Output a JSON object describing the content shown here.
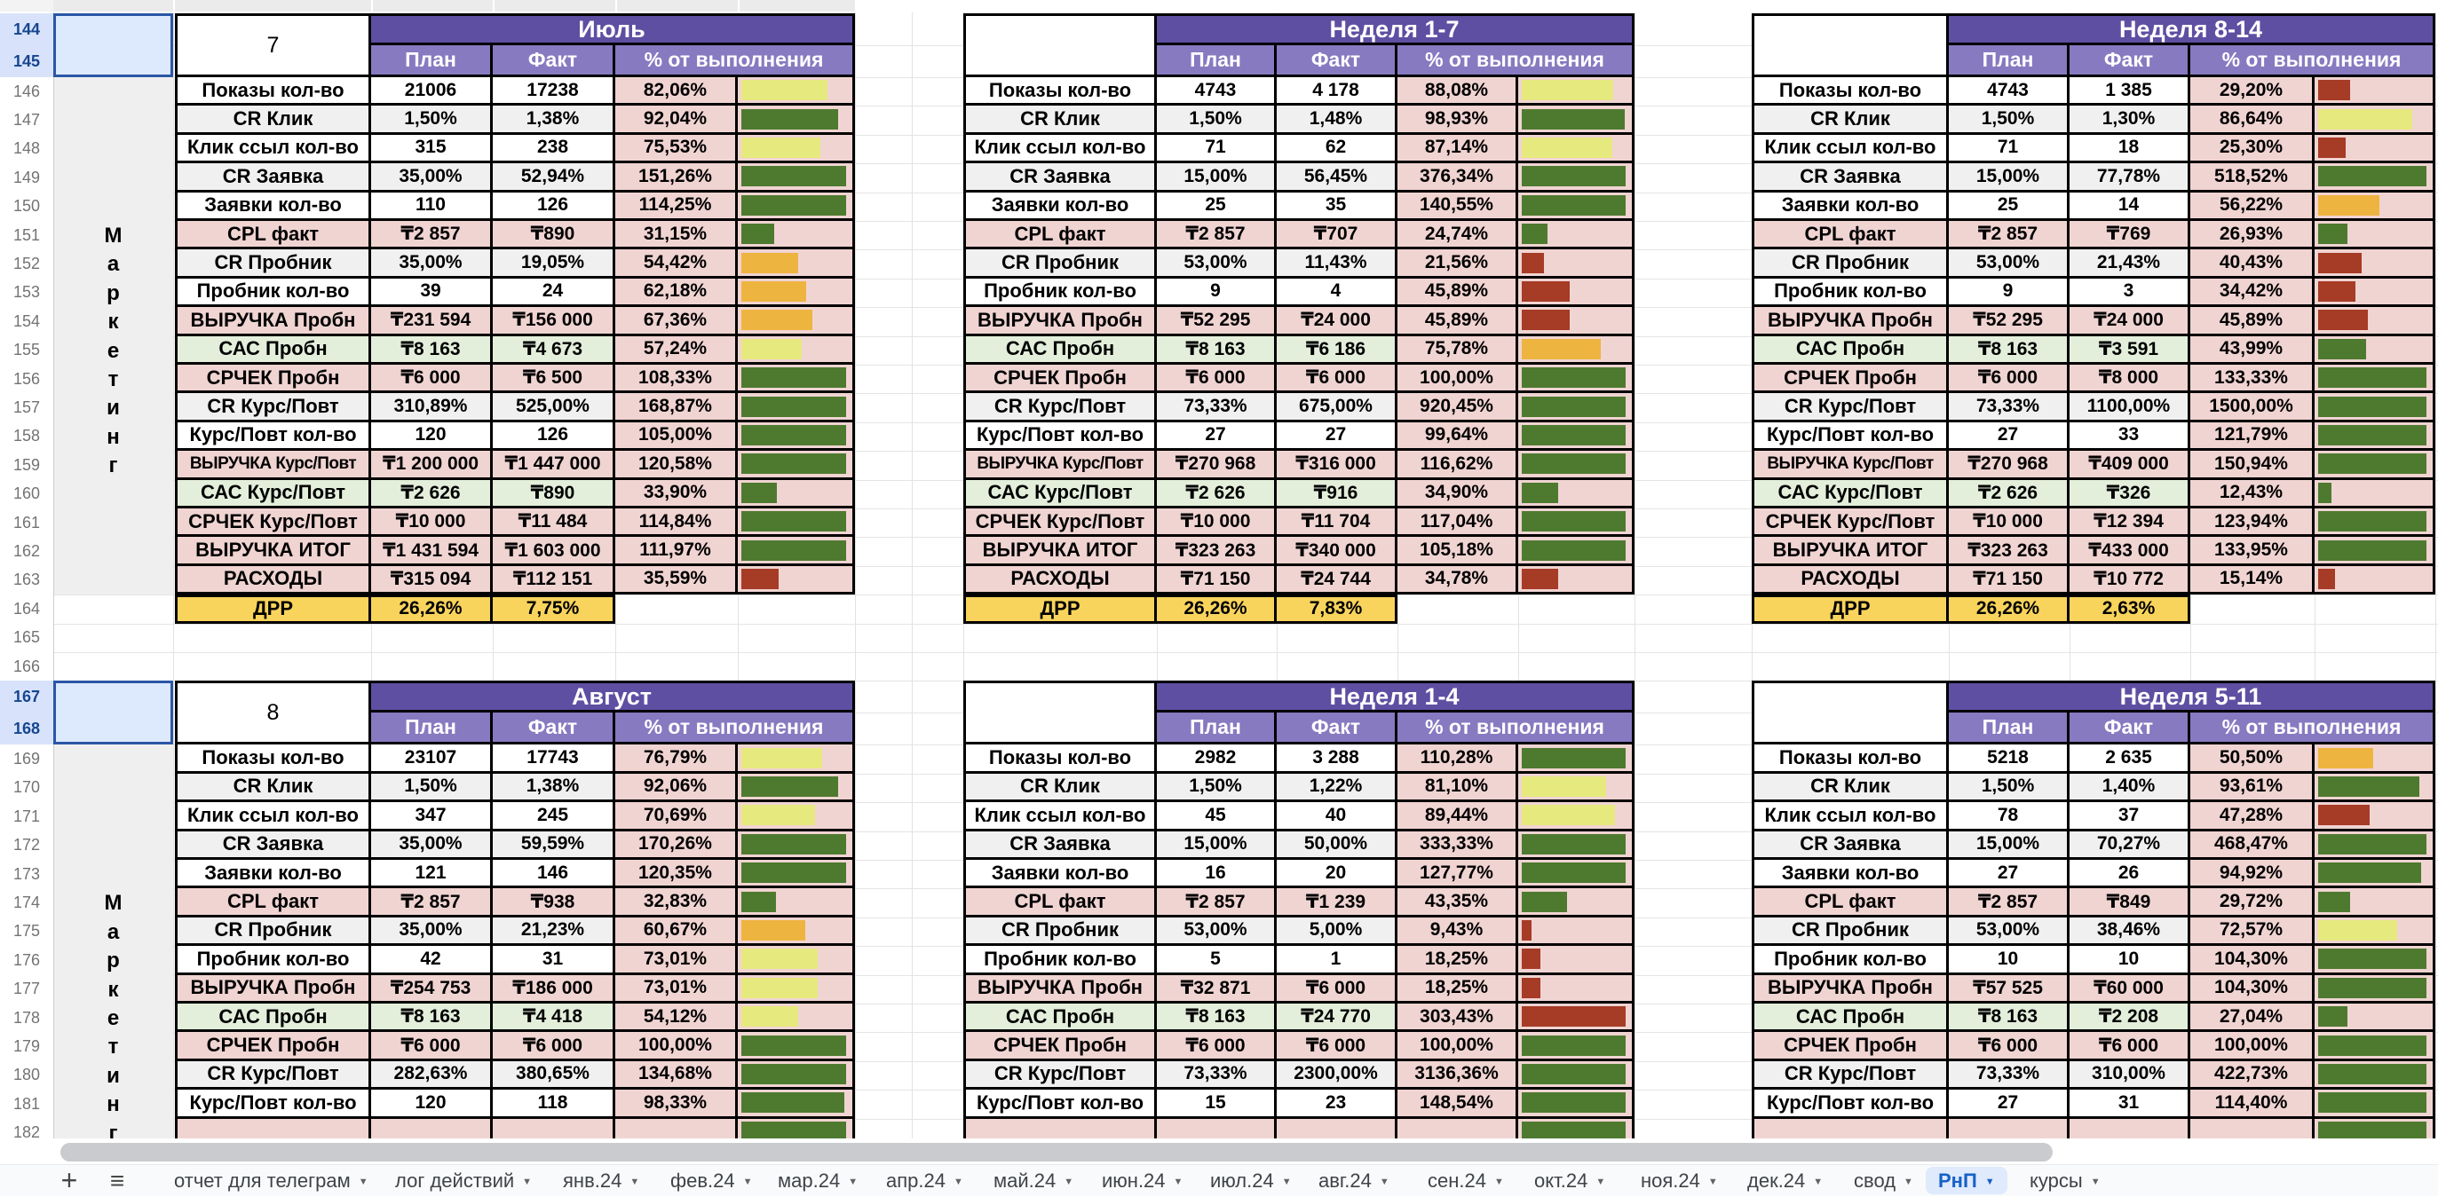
{
  "headers": {
    "plan": "План",
    "fact": "Факт",
    "pct": "% от выполнения"
  },
  "drr_label": "ДРР",
  "side_label": {
    "text": "Маркетинг",
    "letters": [
      "М",
      "а",
      "р",
      "к",
      "е",
      "т",
      "и",
      "н",
      "г"
    ]
  },
  "metrics": [
    "Показы кол-во",
    "CR Клик",
    "Клик ссыл кол-во",
    "CR Заявка",
    "Заявки кол-во",
    "CPL факт",
    "CR Пробник",
    "Пробник кол-во",
    "ВЫРУЧКА Пробн",
    "САС Пробн",
    "СРЧЕК Пробн",
    "CR Курс/Повт",
    "Курс/Повт кол-во",
    "ВЫРУЧКА Курс/Повт",
    "САС Курс/Повт",
    "СРЧЕК Курс/Повт",
    "ВЫРУЧКА ИТОГ",
    "РАСХОДЫ"
  ],
  "row_styles": [
    "white",
    "grey",
    "white",
    "grey",
    "white",
    "pink",
    "grey",
    "white",
    "pink",
    "green",
    "pink",
    "grey",
    "white",
    "pink",
    "green",
    "pink",
    "pink",
    "pink"
  ],
  "row_numbers": {
    "first": 144,
    "last": 182,
    "selected": [
      144,
      145,
      167,
      168
    ]
  },
  "tables": [
    {
      "id": "july",
      "title": "Июль",
      "index_label": "7",
      "band": "top",
      "col": 0,
      "rows": [
        {
          "plan": "21006",
          "fact": "17238",
          "pct": "82,06%",
          "pct_value": 82.06,
          "bar": "yellow"
        },
        {
          "plan": "1,50%",
          "fact": "1,38%",
          "pct": "92,04%",
          "pct_value": 92.04,
          "bar": "green"
        },
        {
          "plan": "315",
          "fact": "238",
          "pct": "75,53%",
          "pct_value": 75.53,
          "bar": "yellow"
        },
        {
          "plan": "35,00%",
          "fact": "52,94%",
          "pct": "151,26%",
          "pct_value": 151.26,
          "bar": "green"
        },
        {
          "plan": "110",
          "fact": "126",
          "pct": "114,25%",
          "pct_value": 114.25,
          "bar": "green"
        },
        {
          "plan": "₸2 857",
          "fact": "₸890",
          "pct": "31,15%",
          "pct_value": 31.15,
          "bar": "green"
        },
        {
          "plan": "35,00%",
          "fact": "19,05%",
          "pct": "54,42%",
          "pct_value": 54.42,
          "bar": "orange"
        },
        {
          "plan": "39",
          "fact": "24",
          "pct": "62,18%",
          "pct_value": 62.18,
          "bar": "orange"
        },
        {
          "plan": "₸231 594",
          "fact": "₸156 000",
          "pct": "67,36%",
          "pct_value": 67.36,
          "bar": "orange"
        },
        {
          "plan": "₸8 163",
          "fact": "₸4 673",
          "pct": "57,24%",
          "pct_value": 57.24,
          "bar": "yellow"
        },
        {
          "plan": "₸6 000",
          "fact": "₸6 500",
          "pct": "108,33%",
          "pct_value": 108.33,
          "bar": "green"
        },
        {
          "plan": "310,89%",
          "fact": "525,00%",
          "pct": "168,87%",
          "pct_value": 168.87,
          "bar": "green"
        },
        {
          "plan": "120",
          "fact": "126",
          "pct": "105,00%",
          "pct_value": 105.0,
          "bar": "green"
        },
        {
          "plan": "₸1 200 000",
          "fact": "₸1 447 000",
          "pct": "120,58%",
          "pct_value": 120.58,
          "bar": "green"
        },
        {
          "plan": "₸2 626",
          "fact": "₸890",
          "pct": "33,90%",
          "pct_value": 33.9,
          "bar": "green"
        },
        {
          "plan": "₸10 000",
          "fact": "₸11 484",
          "pct": "114,84%",
          "pct_value": 114.84,
          "bar": "green"
        },
        {
          "plan": "₸1 431 594",
          "fact": "₸1 603 000",
          "pct": "111,97%",
          "pct_value": 111.97,
          "bar": "green"
        },
        {
          "plan": "₸315 094",
          "fact": "₸112 151",
          "pct": "35,59%",
          "pct_value": 35.59,
          "bar": "red"
        }
      ],
      "drr": {
        "plan": "26,26%",
        "fact": "7,75%"
      }
    },
    {
      "id": "week-1-7",
      "title": "Неделя 1-7",
      "index_label": "",
      "band": "top",
      "col": 1,
      "rows": [
        {
          "plan": "4743",
          "fact": "4 178",
          "pct": "88,08%",
          "pct_value": 88.08,
          "bar": "yellow"
        },
        {
          "plan": "1,50%",
          "fact": "1,48%",
          "pct": "98,93%",
          "pct_value": 98.93,
          "bar": "green"
        },
        {
          "plan": "71",
          "fact": "62",
          "pct": "87,14%",
          "pct_value": 87.14,
          "bar": "yellow"
        },
        {
          "plan": "15,00%",
          "fact": "56,45%",
          "pct": "376,34%",
          "pct_value": 376.34,
          "bar": "green"
        },
        {
          "plan": "25",
          "fact": "35",
          "pct": "140,55%",
          "pct_value": 140.55,
          "bar": "green"
        },
        {
          "plan": "₸2 857",
          "fact": "₸707",
          "pct": "24,74%",
          "pct_value": 24.74,
          "bar": "green"
        },
        {
          "plan": "53,00%",
          "fact": "11,43%",
          "pct": "21,56%",
          "pct_value": 21.56,
          "bar": "red"
        },
        {
          "plan": "9",
          "fact": "4",
          "pct": "45,89%",
          "pct_value": 45.89,
          "bar": "red"
        },
        {
          "plan": "₸52 295",
          "fact": "₸24 000",
          "pct": "45,89%",
          "pct_value": 45.89,
          "bar": "red"
        },
        {
          "plan": "₸8 163",
          "fact": "₸6 186",
          "pct": "75,78%",
          "pct_value": 75.78,
          "bar": "orange"
        },
        {
          "plan": "₸6 000",
          "fact": "₸6 000",
          "pct": "100,00%",
          "pct_value": 100.0,
          "bar": "green"
        },
        {
          "plan": "73,33%",
          "fact": "675,00%",
          "pct": "920,45%",
          "pct_value": 920.45,
          "bar": "green"
        },
        {
          "plan": "27",
          "fact": "27",
          "pct": "99,64%",
          "pct_value": 99.64,
          "bar": "green"
        },
        {
          "plan": "₸270 968",
          "fact": "₸316 000",
          "pct": "116,62%",
          "pct_value": 116.62,
          "bar": "green"
        },
        {
          "plan": "₸2 626",
          "fact": "₸916",
          "pct": "34,90%",
          "pct_value": 34.9,
          "bar": "green"
        },
        {
          "plan": "₸10 000",
          "fact": "₸11 704",
          "pct": "117,04%",
          "pct_value": 117.04,
          "bar": "green"
        },
        {
          "plan": "₸323 263",
          "fact": "₸340 000",
          "pct": "105,18%",
          "pct_value": 105.18,
          "bar": "green"
        },
        {
          "plan": "₸71 150",
          "fact": "₸24 744",
          "pct": "34,78%",
          "pct_value": 34.78,
          "bar": "red"
        }
      ],
      "drr": {
        "plan": "26,26%",
        "fact": "7,83%"
      }
    },
    {
      "id": "week-8-14",
      "title": "Неделя 8-14",
      "index_label": "",
      "band": "top",
      "col": 2,
      "rows": [
        {
          "plan": "4743",
          "fact": "1 385",
          "pct": "29,20%",
          "pct_value": 29.2,
          "bar": "red"
        },
        {
          "plan": "1,50%",
          "fact": "1,30%",
          "pct": "86,64%",
          "pct_value": 86.64,
          "bar": "yellow"
        },
        {
          "plan": "71",
          "fact": "18",
          "pct": "25,30%",
          "pct_value": 25.3,
          "bar": "red"
        },
        {
          "plan": "15,00%",
          "fact": "77,78%",
          "pct": "518,52%",
          "pct_value": 518.52,
          "bar": "green"
        },
        {
          "plan": "25",
          "fact": "14",
          "pct": "56,22%",
          "pct_value": 56.22,
          "bar": "orange"
        },
        {
          "plan": "₸2 857",
          "fact": "₸769",
          "pct": "26,93%",
          "pct_value": 26.93,
          "bar": "green"
        },
        {
          "plan": "53,00%",
          "fact": "21,43%",
          "pct": "40,43%",
          "pct_value": 40.43,
          "bar": "red"
        },
        {
          "plan": "9",
          "fact": "3",
          "pct": "34,42%",
          "pct_value": 34.42,
          "bar": "red"
        },
        {
          "plan": "₸52 295",
          "fact": "₸24 000",
          "pct": "45,89%",
          "pct_value": 45.89,
          "bar": "red"
        },
        {
          "plan": "₸8 163",
          "fact": "₸3 591",
          "pct": "43,99%",
          "pct_value": 43.99,
          "bar": "green"
        },
        {
          "plan": "₸6 000",
          "fact": "₸8 000",
          "pct": "133,33%",
          "pct_value": 133.33,
          "bar": "green"
        },
        {
          "plan": "73,33%",
          "fact": "1100,00%",
          "pct": "1500,00%",
          "pct_value": 1500.0,
          "bar": "green"
        },
        {
          "plan": "27",
          "fact": "33",
          "pct": "121,79%",
          "pct_value": 121.79,
          "bar": "green"
        },
        {
          "plan": "₸270 968",
          "fact": "₸409 000",
          "pct": "150,94%",
          "pct_value": 150.94,
          "bar": "green"
        },
        {
          "plan": "₸2 626",
          "fact": "₸326",
          "pct": "12,43%",
          "pct_value": 12.43,
          "bar": "green"
        },
        {
          "plan": "₸10 000",
          "fact": "₸12 394",
          "pct": "123,94%",
          "pct_value": 123.94,
          "bar": "green"
        },
        {
          "plan": "₸323 263",
          "fact": "₸433 000",
          "pct": "133,95%",
          "pct_value": 133.95,
          "bar": "green"
        },
        {
          "plan": "₸71 150",
          "fact": "₸10 772",
          "pct": "15,14%",
          "pct_value": 15.14,
          "bar": "red"
        }
      ],
      "drr": {
        "plan": "26,26%",
        "fact": "2,63%"
      }
    },
    {
      "id": "august",
      "title": "Август",
      "index_label": "8",
      "band": "bottom",
      "col": 0,
      "rows": [
        {
          "plan": "23107",
          "fact": "17743",
          "pct": "76,79%",
          "pct_value": 76.79,
          "bar": "yellow"
        },
        {
          "plan": "1,50%",
          "fact": "1,38%",
          "pct": "92,06%",
          "pct_value": 92.06,
          "bar": "green"
        },
        {
          "plan": "347",
          "fact": "245",
          "pct": "70,69%",
          "pct_value": 70.69,
          "bar": "yellow"
        },
        {
          "plan": "35,00%",
          "fact": "59,59%",
          "pct": "170,26%",
          "pct_value": 170.26,
          "bar": "green"
        },
        {
          "plan": "121",
          "fact": "146",
          "pct": "120,35%",
          "pct_value": 120.35,
          "bar": "green"
        },
        {
          "plan": "₸2 857",
          "fact": "₸938",
          "pct": "32,83%",
          "pct_value": 32.83,
          "bar": "green"
        },
        {
          "plan": "35,00%",
          "fact": "21,23%",
          "pct": "60,67%",
          "pct_value": 60.67,
          "bar": "orange"
        },
        {
          "plan": "42",
          "fact": "31",
          "pct": "73,01%",
          "pct_value": 73.01,
          "bar": "yellow"
        },
        {
          "plan": "₸254 753",
          "fact": "₸186 000",
          "pct": "73,01%",
          "pct_value": 73.01,
          "bar": "yellow"
        },
        {
          "plan": "₸8 163",
          "fact": "₸4 418",
          "pct": "54,12%",
          "pct_value": 54.12,
          "bar": "yellow"
        },
        {
          "plan": "₸6 000",
          "fact": "₸6 000",
          "pct": "100,00%",
          "pct_value": 100.0,
          "bar": "green"
        },
        {
          "plan": "282,63%",
          "fact": "380,65%",
          "pct": "134,68%",
          "pct_value": 134.68,
          "bar": "green"
        },
        {
          "plan": "120",
          "fact": "118",
          "pct": "98,33%",
          "pct_value": 98.33,
          "bar": "green"
        }
      ],
      "partial_row": {
        "bar": "green",
        "pct_value": 100
      }
    },
    {
      "id": "week-1-4",
      "title": "Неделя 1-4",
      "index_label": "",
      "band": "bottom",
      "col": 1,
      "rows": [
        {
          "plan": "2982",
          "fact": "3 288",
          "pct": "110,28%",
          "pct_value": 110.28,
          "bar": "green"
        },
        {
          "plan": "1,50%",
          "fact": "1,22%",
          "pct": "81,10%",
          "pct_value": 81.1,
          "bar": "yellow"
        },
        {
          "plan": "45",
          "fact": "40",
          "pct": "89,44%",
          "pct_value": 89.44,
          "bar": "yellow"
        },
        {
          "plan": "15,00%",
          "fact": "50,00%",
          "pct": "333,33%",
          "pct_value": 333.33,
          "bar": "green"
        },
        {
          "plan": "16",
          "fact": "20",
          "pct": "127,77%",
          "pct_value": 127.77,
          "bar": "green"
        },
        {
          "plan": "₸2 857",
          "fact": "₸1 239",
          "pct": "43,35%",
          "pct_value": 43.35,
          "bar": "green"
        },
        {
          "plan": "53,00%",
          "fact": "5,00%",
          "pct": "9,43%",
          "pct_value": 9.43,
          "bar": "red"
        },
        {
          "plan": "5",
          "fact": "1",
          "pct": "18,25%",
          "pct_value": 18.25,
          "bar": "red"
        },
        {
          "plan": "₸32 871",
          "fact": "₸6 000",
          "pct": "18,25%",
          "pct_value": 18.25,
          "bar": "red"
        },
        {
          "plan": "₸8 163",
          "fact": "₸24 770",
          "pct": "303,43%",
          "pct_value": 303.43,
          "bar": "red"
        },
        {
          "plan": "₸6 000",
          "fact": "₸6 000",
          "pct": "100,00%",
          "pct_value": 100.0,
          "bar": "green"
        },
        {
          "plan": "73,33%",
          "fact": "2300,00%",
          "pct": "3136,36%",
          "pct_value": 3136.36,
          "bar": "green"
        },
        {
          "plan": "15",
          "fact": "23",
          "pct": "148,54%",
          "pct_value": 148.54,
          "bar": "green"
        }
      ],
      "partial_row": {
        "bar": "green",
        "pct_value": 100
      }
    },
    {
      "id": "week-5-11",
      "title": "Неделя 5-11",
      "index_label": "",
      "band": "bottom",
      "col": 2,
      "rows": [
        {
          "plan": "5218",
          "fact": "2 635",
          "pct": "50,50%",
          "pct_value": 50.5,
          "bar": "orange"
        },
        {
          "plan": "1,50%",
          "fact": "1,40%",
          "pct": "93,61%",
          "pct_value": 93.61,
          "bar": "green"
        },
        {
          "plan": "78",
          "fact": "37",
          "pct": "47,28%",
          "pct_value": 47.28,
          "bar": "red"
        },
        {
          "plan": "15,00%",
          "fact": "70,27%",
          "pct": "468,47%",
          "pct_value": 468.47,
          "bar": "green"
        },
        {
          "plan": "27",
          "fact": "26",
          "pct": "94,92%",
          "pct_value": 94.92,
          "bar": "green"
        },
        {
          "plan": "₸2 857",
          "fact": "₸849",
          "pct": "29,72%",
          "pct_value": 29.72,
          "bar": "green"
        },
        {
          "plan": "53,00%",
          "fact": "38,46%",
          "pct": "72,57%",
          "pct_value": 72.57,
          "bar": "yellow"
        },
        {
          "plan": "10",
          "fact": "10",
          "pct": "104,30%",
          "pct_value": 104.3,
          "bar": "green"
        },
        {
          "plan": "₸57 525",
          "fact": "₸60 000",
          "pct": "104,30%",
          "pct_value": 104.3,
          "bar": "green"
        },
        {
          "plan": "₸8 163",
          "fact": "₸2 208",
          "pct": "27,04%",
          "pct_value": 27.04,
          "bar": "green"
        },
        {
          "plan": "₸6 000",
          "fact": "₸6 000",
          "pct": "100,00%",
          "pct_value": 100.0,
          "bar": "green"
        },
        {
          "plan": "73,33%",
          "fact": "310,00%",
          "pct": "422,73%",
          "pct_value": 422.73,
          "bar": "green"
        },
        {
          "plan": "27",
          "fact": "31",
          "pct": "114,40%",
          "pct_value": 114.4,
          "bar": "green"
        }
      ],
      "partial_row": {
        "bar": "green",
        "pct_value": 100
      }
    }
  ],
  "tabs": {
    "items": [
      "отчет для телеграм",
      "лог действий",
      "янв.24",
      "фев.24",
      "мар.24",
      "апр.24",
      "май.24",
      "июн.24",
      "июл.24",
      "авг.24",
      "сен.24",
      "окт.24",
      "ноя.24",
      "дек.24",
      "свод",
      "РнП",
      "курсы"
    ],
    "active": "РнП"
  },
  "colors": {
    "header_title_bg": "#5e4fa2",
    "header_sub_bg": "#877ac1",
    "cell_white": "#ffffff",
    "cell_grey": "#f0f0f0",
    "cell_pink": "#f0d4d2",
    "cell_green": "#e3efdb",
    "drr_bg": "#f8d45c",
    "bar_green": "#4e7a2f",
    "bar_yellow": "#e6e97e",
    "bar_orange": "#eeb440",
    "bar_red": "#a63b26",
    "selected_rownum_bg": "#d8e3fb",
    "selected_cell_bg": "#dde9fd",
    "selection_border": "#2a56a5",
    "active_tab_color": "#1661c7",
    "active_tab_bg": "#dfeafc"
  }
}
